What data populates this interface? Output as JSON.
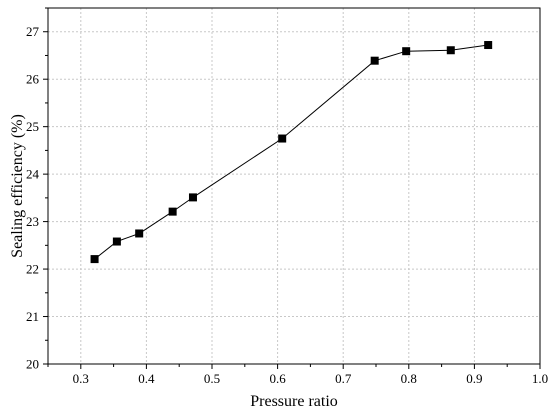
{
  "chart_data": {
    "type": "line",
    "xlabel": "Pressure ratio",
    "ylabel": "Sealing efficiency (%)",
    "xlim": [
      0.25,
      1.0
    ],
    "ylim": [
      20,
      27.5
    ],
    "xticks": [
      0.3,
      0.4,
      0.5,
      0.6,
      0.7,
      0.8,
      0.9,
      1.0
    ],
    "xtick_labels": [
      "0.3",
      "0.4",
      "0.5",
      "0.6",
      "0.7",
      "0.8",
      "0.9",
      "1.0"
    ],
    "yticks": [
      20,
      21,
      22,
      23,
      24,
      25,
      26,
      27
    ],
    "ytick_labels": [
      "20",
      "21",
      "22",
      "23",
      "24",
      "25",
      "26",
      "27"
    ],
    "grid": true,
    "marker": "square",
    "colors": {
      "line": "#000000",
      "marker": "#000000",
      "grid": "#c8c8c8"
    },
    "series": [
      {
        "x": [
          0.321,
          0.355,
          0.389,
          0.44,
          0.471,
          0.607,
          0.748,
          0.796,
          0.864,
          0.921
        ],
        "y": [
          22.21,
          22.58,
          22.75,
          23.21,
          23.51,
          24.75,
          26.39,
          26.59,
          26.61,
          26.72
        ]
      }
    ]
  }
}
